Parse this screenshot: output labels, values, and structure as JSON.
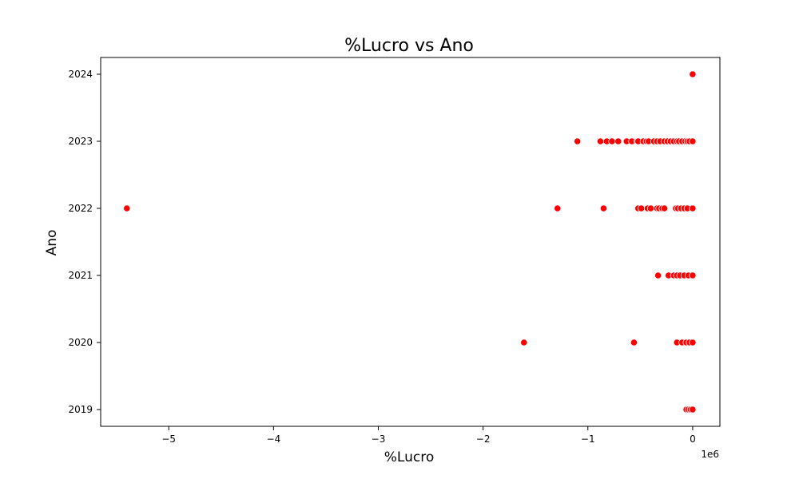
{
  "chart_data": {
    "type": "scatter",
    "title": "%Lucro vs Ano",
    "xlabel": "%Lucro",
    "ylabel": "Ano",
    "x_offset_label": "1e6",
    "x_scale_factor": 1000000,
    "xlim": [
      -5650000,
      260000
    ],
    "ylim": [
      2018.75,
      2024.25
    ],
    "x_ticks": [
      -5000000,
      -4000000,
      -3000000,
      -2000000,
      -1000000,
      0
    ],
    "x_tick_labels": [
      "−5",
      "−4",
      "−3",
      "−2",
      "−1",
      "0"
    ],
    "y_ticks": [
      2019,
      2020,
      2021,
      2022,
      2023,
      2024
    ],
    "y_tick_labels": [
      "2019",
      "2020",
      "2021",
      "2022",
      "2023",
      "2024"
    ],
    "grid": false,
    "legend": "none",
    "colors": {
      "point": "#ff0000",
      "point_edge": "#ffffff"
    },
    "points": [
      {
        "x": 0,
        "y": 2024
      },
      {
        "x": -1100000,
        "y": 2023
      },
      {
        "x": -880000,
        "y": 2023
      },
      {
        "x": -820000,
        "y": 2023
      },
      {
        "x": -770000,
        "y": 2023
      },
      {
        "x": -710000,
        "y": 2023
      },
      {
        "x": -630000,
        "y": 2023
      },
      {
        "x": -580000,
        "y": 2023
      },
      {
        "x": -530000,
        "y": 2023
      },
      {
        "x": -520000,
        "y": 2023
      },
      {
        "x": -470000,
        "y": 2023
      },
      {
        "x": -440000,
        "y": 2023
      },
      {
        "x": -420000,
        "y": 2023
      },
      {
        "x": -370000,
        "y": 2023
      },
      {
        "x": -340000,
        "y": 2023
      },
      {
        "x": -310000,
        "y": 2023
      },
      {
        "x": -270000,
        "y": 2023
      },
      {
        "x": -240000,
        "y": 2023
      },
      {
        "x": -210000,
        "y": 2023
      },
      {
        "x": -180000,
        "y": 2023
      },
      {
        "x": -150000,
        "y": 2023
      },
      {
        "x": -130000,
        "y": 2023
      },
      {
        "x": -100000,
        "y": 2023
      },
      {
        "x": -70000,
        "y": 2023
      },
      {
        "x": -50000,
        "y": 2023
      },
      {
        "x": -30000,
        "y": 2023
      },
      {
        "x": 0,
        "y": 2023
      },
      {
        "x": -5400000,
        "y": 2022
      },
      {
        "x": -1290000,
        "y": 2022
      },
      {
        "x": -850000,
        "y": 2022
      },
      {
        "x": -520000,
        "y": 2022
      },
      {
        "x": -490000,
        "y": 2022
      },
      {
        "x": -430000,
        "y": 2022
      },
      {
        "x": -400000,
        "y": 2022
      },
      {
        "x": -340000,
        "y": 2022
      },
      {
        "x": -320000,
        "y": 2022
      },
      {
        "x": -290000,
        "y": 2022
      },
      {
        "x": -270000,
        "y": 2022
      },
      {
        "x": -160000,
        "y": 2022
      },
      {
        "x": -140000,
        "y": 2022
      },
      {
        "x": -110000,
        "y": 2022
      },
      {
        "x": -80000,
        "y": 2022
      },
      {
        "x": -50000,
        "y": 2022
      },
      {
        "x": 0,
        "y": 2022
      },
      {
        "x": -330000,
        "y": 2021
      },
      {
        "x": -230000,
        "y": 2021
      },
      {
        "x": -180000,
        "y": 2021
      },
      {
        "x": -150000,
        "y": 2021
      },
      {
        "x": -120000,
        "y": 2021
      },
      {
        "x": -80000,
        "y": 2021
      },
      {
        "x": -40000,
        "y": 2021
      },
      {
        "x": 0,
        "y": 2021
      },
      {
        "x": -1610000,
        "y": 2020
      },
      {
        "x": -560000,
        "y": 2020
      },
      {
        "x": -150000,
        "y": 2020
      },
      {
        "x": -100000,
        "y": 2020
      },
      {
        "x": -60000,
        "y": 2020
      },
      {
        "x": -30000,
        "y": 2020
      },
      {
        "x": 0,
        "y": 2020
      },
      {
        "x": -60000,
        "y": 2019
      },
      {
        "x": -40000,
        "y": 2019
      },
      {
        "x": -20000,
        "y": 2019
      },
      {
        "x": 0,
        "y": 2019
      }
    ]
  }
}
